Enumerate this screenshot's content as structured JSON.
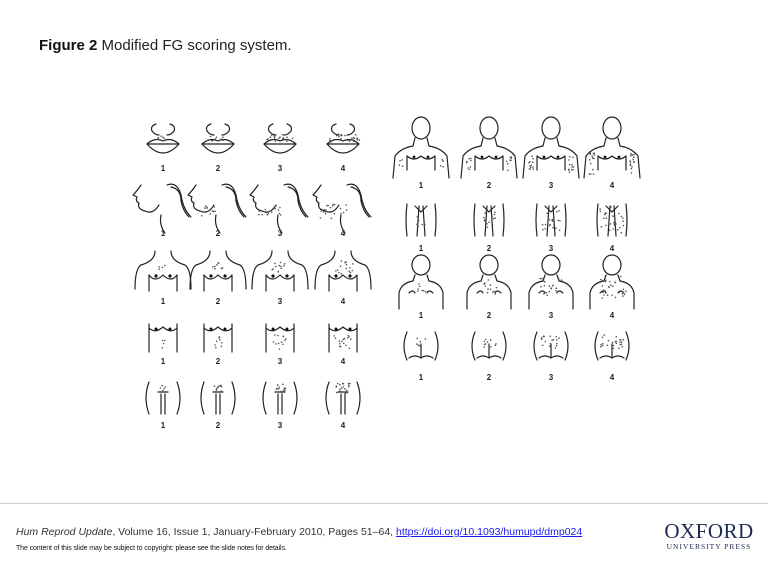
{
  "slide": {
    "title_label": "Figure 2",
    "title_text": "Modified FG scoring system."
  },
  "figure": {
    "description": "Modified Ferriman-Gallwey hirsutism scoring illustrations, 9 body areas each scored 1-4",
    "left_panel": {
      "rows": [
        {
          "area": "upper-lip",
          "scores": [
            "1",
            "2",
            "3",
            "4"
          ]
        },
        {
          "area": "chin",
          "scores": [
            "1",
            "2",
            "3",
            "4"
          ]
        },
        {
          "area": "chest",
          "scores": [
            "1",
            "2",
            "3",
            "4"
          ]
        },
        {
          "area": "upper-abdomen",
          "scores": [
            "1",
            "2",
            "3",
            "4"
          ]
        },
        {
          "area": "lower-abdomen",
          "scores": [
            "1",
            "2",
            "3",
            "4"
          ]
        }
      ]
    },
    "right_panel": {
      "rows": [
        {
          "area": "upper-arm",
          "scores": [
            "1",
            "2",
            "3",
            "4"
          ]
        },
        {
          "area": "thigh",
          "scores": [
            "1",
            "2",
            "3",
            "4"
          ]
        },
        {
          "area": "upper-back",
          "scores": [
            "1",
            "2",
            "3",
            "4"
          ]
        },
        {
          "area": "lower-back",
          "scores": [
            "1",
            "2",
            "3",
            "4"
          ]
        }
      ]
    }
  },
  "footer": {
    "journal": "Hum Reprod Update",
    "citation_rest": ", Volume 16, Issue 1, January-February 2010, Pages 51–64, ",
    "doi_link": "https://doi.org/10.1093/humupd/dmp024",
    "notice": "The content of this slide may be subject to copyright: please see the slide notes for details.",
    "logo_main": "OXFORD",
    "logo_sub": "UNIVERSITY PRESS"
  }
}
